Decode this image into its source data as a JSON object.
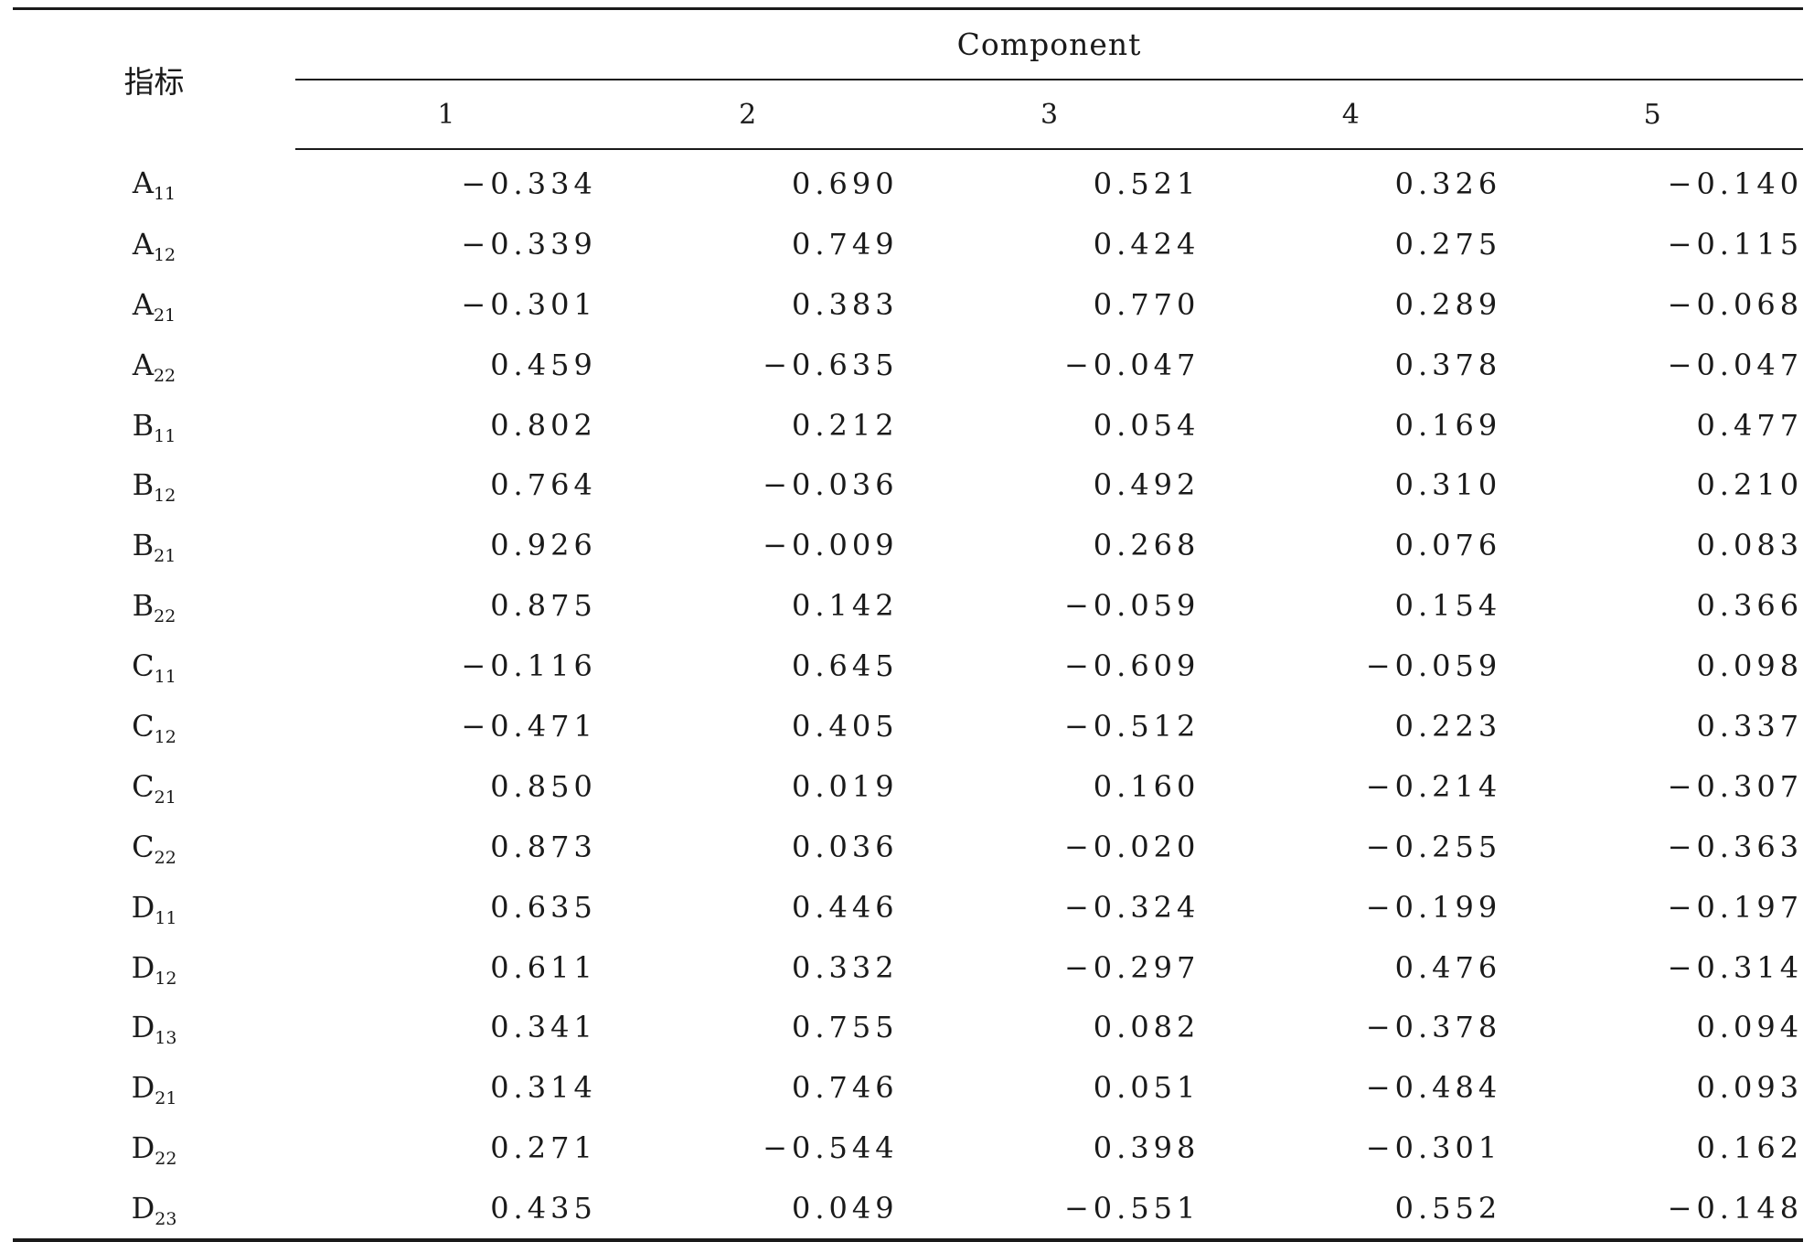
{
  "table": {
    "index_header": "指标",
    "component_header": "Component",
    "component_columns": [
      "1",
      "2",
      "3",
      "4",
      "5"
    ],
    "rows": [
      {
        "label": "A",
        "sub": "11",
        "values": [
          "−0.334",
          "0.690",
          "0.521",
          "0.326",
          "−0.140"
        ]
      },
      {
        "label": "A",
        "sub": "12",
        "values": [
          "−0.339",
          "0.749",
          "0.424",
          "0.275",
          "−0.115"
        ]
      },
      {
        "label": "A",
        "sub": "21",
        "values": [
          "−0.301",
          "0.383",
          "0.770",
          "0.289",
          "−0.068"
        ]
      },
      {
        "label": "A",
        "sub": "22",
        "values": [
          "0.459",
          "−0.635",
          "−0.047",
          "0.378",
          "−0.047"
        ]
      },
      {
        "label": "B",
        "sub": "11",
        "values": [
          "0.802",
          "0.212",
          "0.054",
          "0.169",
          "0.477"
        ]
      },
      {
        "label": "B",
        "sub": "12",
        "values": [
          "0.764",
          "−0.036",
          "0.492",
          "0.310",
          "0.210"
        ]
      },
      {
        "label": "B",
        "sub": "21",
        "values": [
          "0.926",
          "−0.009",
          "0.268",
          "0.076",
          "0.083"
        ]
      },
      {
        "label": "B",
        "sub": "22",
        "values": [
          "0.875",
          "0.142",
          "−0.059",
          "0.154",
          "0.366"
        ]
      },
      {
        "label": "C",
        "sub": "11",
        "values": [
          "−0.116",
          "0.645",
          "−0.609",
          "−0.059",
          "0.098"
        ]
      },
      {
        "label": "C",
        "sub": "12",
        "values": [
          "−0.471",
          "0.405",
          "−0.512",
          "0.223",
          "0.337"
        ]
      },
      {
        "label": "C",
        "sub": "21",
        "values": [
          "0.850",
          "0.019",
          "0.160",
          "−0.214",
          "−0.307"
        ]
      },
      {
        "label": "C",
        "sub": "22",
        "values": [
          "0.873",
          "0.036",
          "−0.020",
          "−0.255",
          "−0.363"
        ]
      },
      {
        "label": "D",
        "sub": "11",
        "values": [
          "0.635",
          "0.446",
          "−0.324",
          "−0.199",
          "−0.197"
        ]
      },
      {
        "label": "D",
        "sub": "12",
        "values": [
          "0.611",
          "0.332",
          "−0.297",
          "0.476",
          "−0.314"
        ]
      },
      {
        "label": "D",
        "sub": "13",
        "values": [
          "0.341",
          "0.755",
          "0.082",
          "−0.378",
          "0.094"
        ]
      },
      {
        "label": "D",
        "sub": "21",
        "values": [
          "0.314",
          "0.746",
          "0.051",
          "−0.484",
          "0.093"
        ]
      },
      {
        "label": "D",
        "sub": "22",
        "values": [
          "0.271",
          "−0.544",
          "0.398",
          "−0.301",
          "0.162"
        ]
      },
      {
        "label": "D",
        "sub": "23",
        "values": [
          "0.435",
          "0.049",
          "−0.551",
          "0.552",
          "−0.148"
        ]
      }
    ]
  }
}
